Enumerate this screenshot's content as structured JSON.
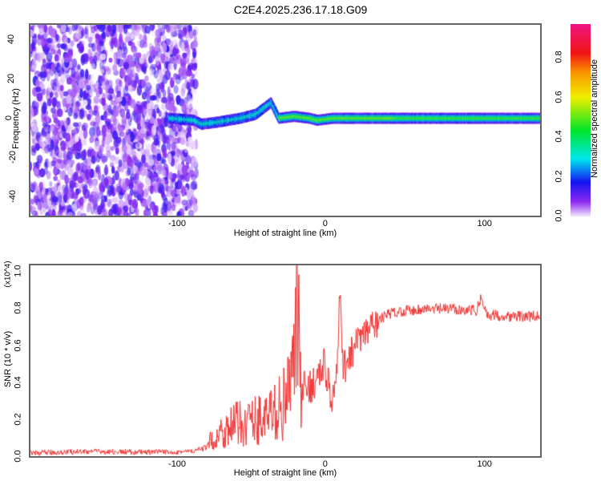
{
  "title": "C2E4.2025.236.17.18.G09",
  "chart_data": [
    {
      "type": "heatmap",
      "name": "spectrogram",
      "xlabel": "Height of straight line (km)",
      "ylabel": "Frequency (Hz)",
      "xlim": [
        -196,
        135
      ],
      "ylim": [
        -50,
        48
      ],
      "xticks": [
        -100,
        0,
        100
      ],
      "yticks": [
        -40,
        -20,
        0,
        20,
        40
      ],
      "noise_region_x": [
        -196,
        -88
      ],
      "ridge": {
        "x": [
          -106,
          -90,
          -85,
          -75,
          -60,
          -50,
          -45,
          -40,
          -35,
          -25,
          -15,
          -10,
          0,
          50,
          100,
          135
        ],
        "freq": [
          0,
          -1,
          -3,
          -2,
          0,
          2,
          5,
          8,
          0,
          1,
          0,
          -1,
          0,
          0,
          0,
          0
        ]
      },
      "colorbar": {
        "label": "Normalized spectral amplitude",
        "ticks": [
          "0.0",
          "0.2",
          "0.4",
          "0.6",
          "0.8"
        ],
        "range": [
          0,
          0.97
        ]
      }
    },
    {
      "type": "line",
      "name": "snr",
      "xlabel": "Height of straight line (km)",
      "ylabel": "SNR (10 * v/v)",
      "yscale_label": "(x10^4)",
      "xlim": [
        -196,
        135
      ],
      "ylim": [
        0,
        1.04
      ],
      "xticks": [
        -100,
        0,
        100
      ],
      "yticks": [
        "0.0",
        "0.2",
        "0.4",
        "0.6",
        "0.8",
        "1.0"
      ],
      "color": "#f03030",
      "x": [
        -196,
        -160,
        -120,
        -90,
        -82,
        -75,
        -65,
        -50,
        -40,
        -30,
        -25,
        -23,
        -21,
        -15,
        -10,
        -5,
        0,
        3,
        5,
        7,
        10,
        15,
        25,
        35,
        45,
        60,
        80,
        93,
        96,
        100,
        115,
        135
      ],
      "y": [
        0.02,
        0.03,
        0.025,
        0.03,
        0.05,
        0.12,
        0.17,
        0.2,
        0.22,
        0.3,
        0.45,
        1.03,
        0.35,
        0.38,
        0.42,
        0.5,
        0.3,
        0.45,
        0.9,
        0.45,
        0.55,
        0.6,
        0.7,
        0.77,
        0.79,
        0.8,
        0.8,
        0.79,
        0.86,
        0.77,
        0.76,
        0.76
      ]
    }
  ]
}
